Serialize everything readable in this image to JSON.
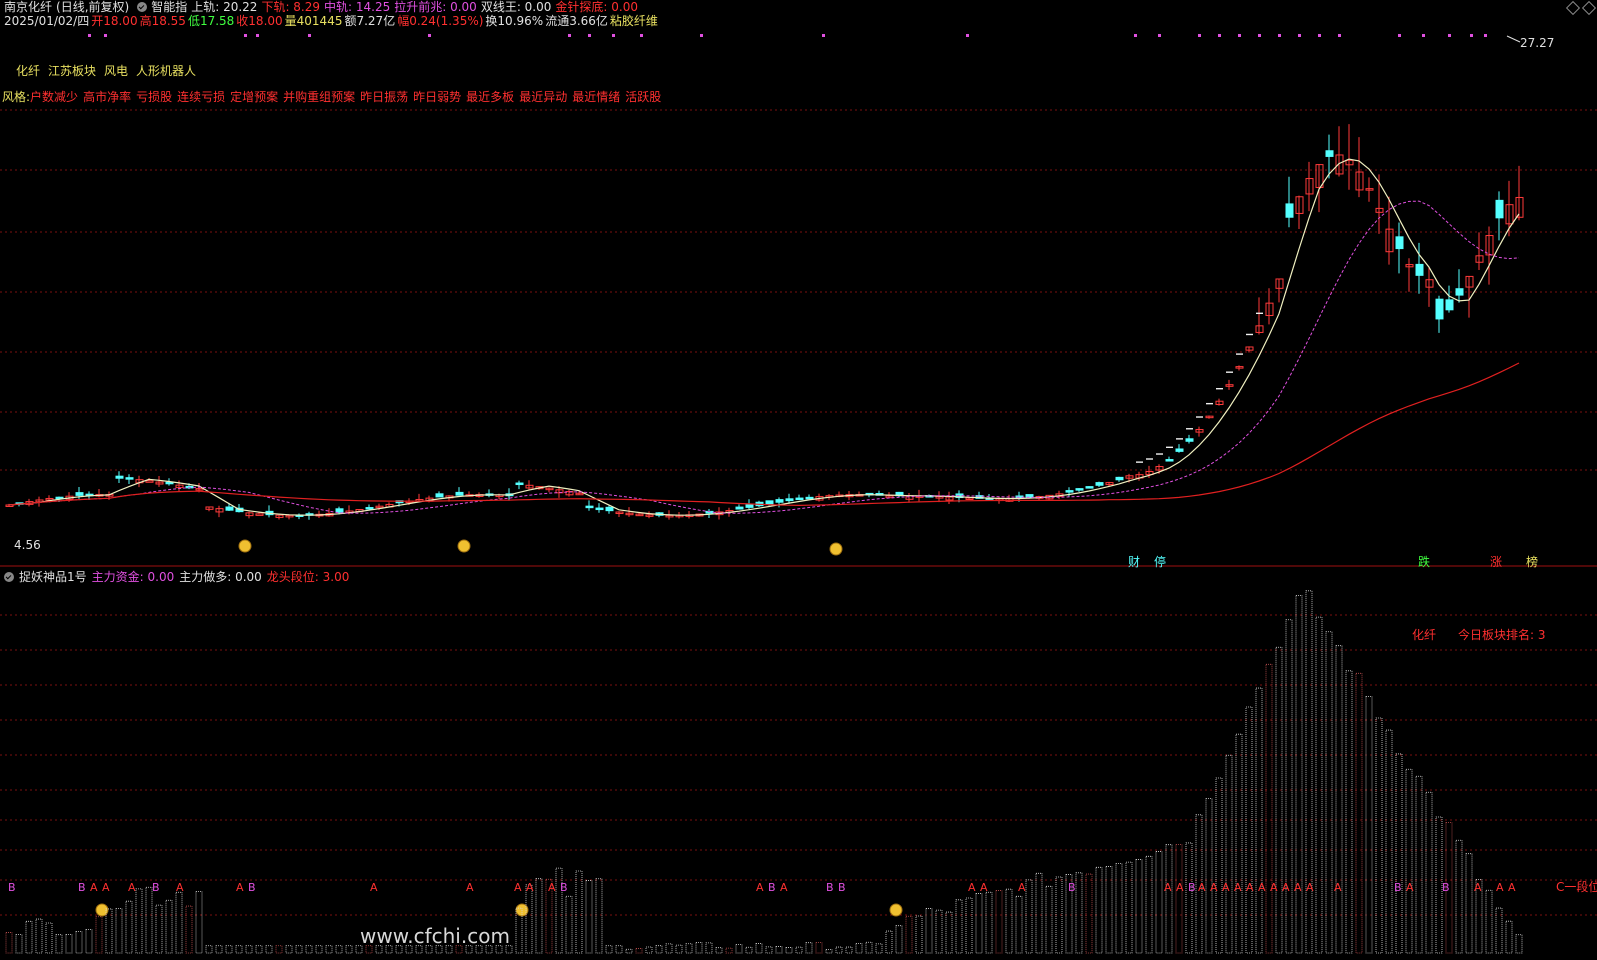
{
  "header": {
    "stock_name": "南京化纤",
    "period": "(日线,前复权)",
    "indicator_name": "智能指",
    "upper_rail": "上轨: 20.22",
    "lower_rail": "下轨: 8.29",
    "mid_rail": "中轨: 14.25",
    "pull_signal": "拉升前兆: 0.00",
    "double_king": "双线王: 0.00",
    "gold_needle": "金针探底: 0.00"
  },
  "quote": {
    "date": "2025/01/02/四",
    "open": "开18.00",
    "high": "高18.55",
    "low": "低17.58",
    "close": "收18.00",
    "volume": "量401445",
    "amount": "额7.27亿",
    "change": "幅0.24(1.35%)",
    "turnover": "换10.96%",
    "float": "流通3.66亿",
    "industry": "粘胶纤维"
  },
  "sectors": [
    "化纤",
    "江苏板块",
    "风电",
    "人形机器人"
  ],
  "styles": {
    "label": "风格:",
    "tags": [
      "户数减少",
      "高市净率",
      "亏损股",
      "连续亏损",
      "定增预案",
      "并购重组预案",
      "昨日振荡",
      "昨日弱势",
      "最近多板",
      "最近异动",
      "最近情绪",
      "活跃股"
    ]
  },
  "price_labels": {
    "high": "27.27",
    "low": "4.56"
  },
  "event_markers": [
    "财",
    "停",
    "跌",
    "涨",
    "榜"
  ],
  "lower_panel": {
    "title": "捉妖神品1号",
    "main_fund": "主力资金: 0.00",
    "main_long": "主力做多: 0.00",
    "dragon_level": "龙头段位: 3.00",
    "sector_name": "化纤",
    "rank_text": "今日板块排名: 3",
    "right_label": "C一段位"
  },
  "ab_letters": [
    "B",
    "B",
    "A",
    "A",
    "A",
    "B",
    "A",
    "A",
    "B",
    "A",
    "A",
    "A",
    "A",
    "A",
    "B",
    "A",
    "B",
    "A",
    "B",
    "B",
    "A",
    "A",
    "A",
    "B",
    "A",
    "A",
    "B",
    "A",
    "A",
    "A",
    "A",
    "A",
    "A",
    "A",
    "A",
    "A",
    "A",
    "A",
    "B",
    "A",
    "B",
    "A",
    "A",
    "A"
  ],
  "watermark": "www.cfchi.com",
  "colors": {
    "up": "#ff3a3a",
    "down": "#54ffff",
    "ma_white": "#f0f0c0",
    "ma_magenta": "#e050e0",
    "ma_red": "#e02020",
    "grid": "#7a1010"
  }
}
